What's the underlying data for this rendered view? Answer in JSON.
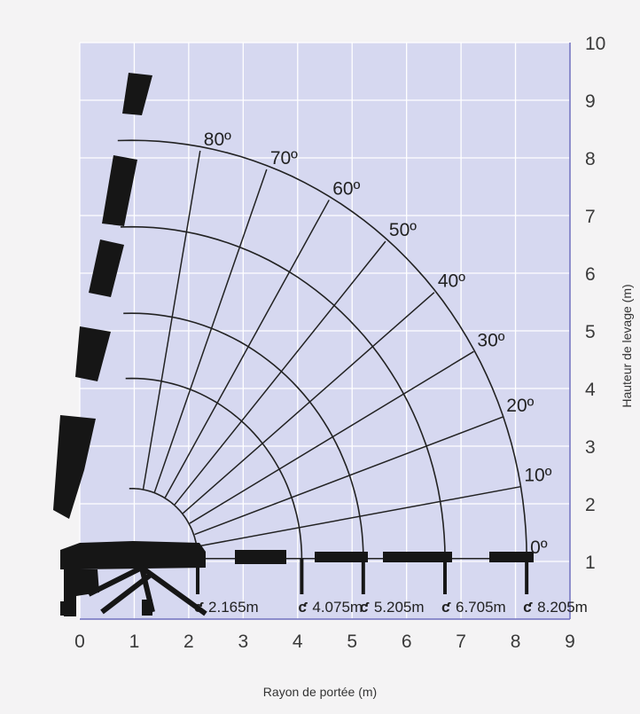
{
  "colors": {
    "background": "#f4f3f4",
    "plot_area": "#d6d8f0",
    "grid": "#ffffff",
    "axis": "#6e6ebe",
    "curves": "#222222",
    "crane": "#161616"
  },
  "chart_data": {
    "type": "line",
    "title": "",
    "xlabel": "Rayon de portée (m)",
    "ylabel": "Hauteur de levage (m)",
    "xlim": [
      0,
      9
    ],
    "ylim": [
      0,
      10
    ],
    "y_axis_side": "right",
    "grid": true,
    "x_ticks": [
      "0",
      "1",
      "2",
      "3",
      "4",
      "5",
      "6",
      "7",
      "8",
      "9"
    ],
    "y_ticks": [
      "1",
      "2",
      "3",
      "4",
      "5",
      "6",
      "7",
      "8",
      "9",
      "10"
    ],
    "pivot": {
      "x": 0.95,
      "y": 1.05
    },
    "reach_labels": [
      "2.165m",
      "4.075m",
      "5.205m",
      "6.705m",
      "8.205m"
    ],
    "angle_labels": [
      "0º",
      "10º",
      "20º",
      "30º",
      "40º",
      "50º",
      "60º",
      "70º",
      "80º"
    ],
    "series": [
      {
        "reach": 2.165,
        "values": [
          {
            "x": 2.18,
            "y": 1.05
          },
          {
            "x": 1.95,
            "y": 2.5
          },
          {
            "x": 1.55,
            "y": 3.0
          },
          {
            "x": 0.95,
            "y": 3.25
          },
          {
            "x": 0.2,
            "y": 3.45
          }
        ]
      },
      {
        "reach": 4.075,
        "values": [
          {
            "x": 3.7,
            "y": 1.05
          },
          {
            "x": 3.3,
            "y": 3.0
          },
          {
            "x": 2.5,
            "y": 4.1
          },
          {
            "x": 1.4,
            "y": 4.85
          },
          {
            "x": 0.45,
            "y": 5.0
          }
        ]
      },
      {
        "reach": 5.205,
        "values": [
          {
            "x": 5.2,
            "y": 1.05
          },
          {
            "x": 4.6,
            "y": 3.6
          },
          {
            "x": 3.5,
            "y": 5.0
          },
          {
            "x": 2.1,
            "y": 5.9
          },
          {
            "x": 0.75,
            "y": 6.25
          }
        ]
      },
      {
        "reach": 6.705,
        "values": [
          {
            "x": 6.7,
            "y": 1.05
          },
          {
            "x": 6.0,
            "y": 4.3
          },
          {
            "x": 4.6,
            "y": 6.1
          },
          {
            "x": 2.8,
            "y": 7.0
          },
          {
            "x": 1.05,
            "y": 7.5
          }
        ]
      },
      {
        "reach": 8.205,
        "values": [
          {
            "x": 8.2,
            "y": 1.05
          },
          {
            "x": 7.4,
            "y": 4.8
          },
          {
            "x": 5.7,
            "y": 7.2
          },
          {
            "x": 3.5,
            "y": 8.6
          },
          {
            "x": 1.3,
            "y": 9.25
          }
        ]
      }
    ]
  }
}
